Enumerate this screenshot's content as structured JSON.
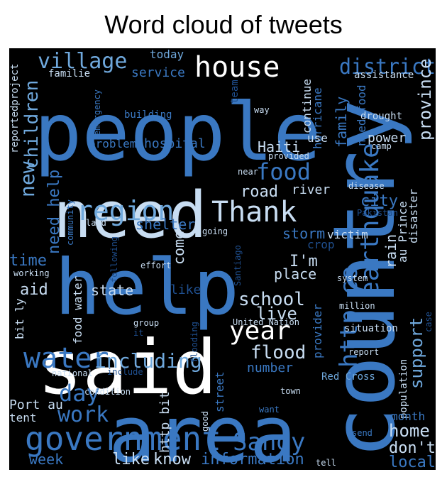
{
  "title": "Word cloud of tweets",
  "palette": {
    "background": "#000000",
    "dark": "#1f4f8f",
    "mid": "#3a78c2",
    "light": "#6fa8dc",
    "pale": "#c8ddf2",
    "white": "#ffffff"
  },
  "chart_data": {
    "type": "wordcloud",
    "title": "Word cloud of tweets",
    "words": [
      {
        "text": "people",
        "shade": "mid"
      },
      {
        "text": "need",
        "shade": "pale"
      },
      {
        "text": "help",
        "shade": "mid"
      },
      {
        "text": "said",
        "shade": "white"
      },
      {
        "text": "area",
        "shade": "mid"
      },
      {
        "text": "country",
        "shade": "mid"
      },
      {
        "text": "government",
        "shade": "mid"
      },
      {
        "text": "water",
        "shade": "mid"
      },
      {
        "text": "house",
        "shade": "white"
      },
      {
        "text": "village",
        "shade": "light"
      },
      {
        "text": "food",
        "shade": "mid"
      },
      {
        "text": "region",
        "shade": "light"
      },
      {
        "text": "Thank",
        "shade": "pale"
      },
      {
        "text": "earthquake",
        "shade": "mid"
      },
      {
        "text": "http co",
        "shade": "mid"
      },
      {
        "text": "Sandy",
        "shade": "mid"
      },
      {
        "text": "year",
        "shade": "white"
      },
      {
        "text": "including",
        "shade": "light"
      },
      {
        "text": "work",
        "shade": "mid"
      },
      {
        "text": "day",
        "shade": "mid"
      },
      {
        "text": "school",
        "shade": "pale"
      },
      {
        "text": "district",
        "shade": "mid"
      },
      {
        "text": "province",
        "shade": "pale"
      },
      {
        "text": "children",
        "shade": "light"
      },
      {
        "text": "new",
        "shade": "light"
      },
      {
        "text": "flood",
        "shade": "pale"
      },
      {
        "text": "live",
        "shade": "pale"
      },
      {
        "text": "road",
        "shade": "pale"
      },
      {
        "text": "storm",
        "shade": "mid"
      },
      {
        "text": "city",
        "shade": "mid"
      },
      {
        "text": "support",
        "shade": "light"
      },
      {
        "text": "home",
        "shade": "pale"
      },
      {
        "text": "information",
        "shade": "mid"
      },
      {
        "text": "like",
        "shade": "pale"
      },
      {
        "text": "know",
        "shade": "pale"
      },
      {
        "text": "week",
        "shade": "mid"
      },
      {
        "text": "local",
        "shade": "mid"
      },
      {
        "text": "don't",
        "shade": "pale"
      },
      {
        "text": "time",
        "shade": "mid"
      },
      {
        "text": "aid",
        "shade": "pale"
      },
      {
        "text": "state",
        "shade": "pale"
      },
      {
        "text": "like",
        "shade": "dark"
      },
      {
        "text": "I'm",
        "shade": "pale"
      },
      {
        "text": "place",
        "shade": "pale"
      },
      {
        "text": "rain",
        "shade": "pale"
      },
      {
        "text": "come",
        "shade": "pale"
      },
      {
        "text": "Haiti",
        "shade": "pale"
      },
      {
        "text": "river",
        "shade": "pale"
      },
      {
        "text": "shelter",
        "shade": "mid"
      },
      {
        "text": "hospital",
        "shade": "mid"
      },
      {
        "text": "problem",
        "shade": "mid"
      },
      {
        "text": "service",
        "shade": "mid"
      },
      {
        "text": "today",
        "shade": "light"
      },
      {
        "text": "familie",
        "shade": "pale"
      },
      {
        "text": "assistance",
        "shade": "pale"
      },
      {
        "text": "hurricane",
        "shade": "mid"
      },
      {
        "text": "continue",
        "shade": "pale"
      },
      {
        "text": "family",
        "shade": "mid"
      },
      {
        "text": "need food",
        "shade": "mid"
      },
      {
        "text": "drought",
        "shade": "pale"
      },
      {
        "text": "power",
        "shade": "pale"
      },
      {
        "text": "camp",
        "shade": "pale"
      },
      {
        "text": "use",
        "shade": "pale"
      },
      {
        "text": "provided",
        "shade": "pale"
      },
      {
        "text": "disease",
        "shade": "pale"
      },
      {
        "text": "Pakistan",
        "shade": "dark"
      },
      {
        "text": "disaster",
        "shade": "pale"
      },
      {
        "text": "au Prince",
        "shade": "pale"
      },
      {
        "text": "victim",
        "shade": "pale"
      },
      {
        "text": "crop",
        "shade": "dark"
      },
      {
        "text": "system",
        "shade": "pale"
      },
      {
        "text": "million",
        "shade": "pale"
      },
      {
        "text": "situation",
        "shade": "pale"
      },
      {
        "text": "case",
        "shade": "dark"
      },
      {
        "text": "report",
        "shade": "pale"
      },
      {
        "text": "Red Cross",
        "shade": "light"
      },
      {
        "text": "population",
        "shade": "pale"
      },
      {
        "text": "month",
        "shade": "mid"
      },
      {
        "text": "send",
        "shade": "mid"
      },
      {
        "text": "tell",
        "shade": "pale"
      },
      {
        "text": "town",
        "shade": "pale"
      },
      {
        "text": "want",
        "shade": "mid"
      },
      {
        "text": "number",
        "shade": "mid"
      },
      {
        "text": "provider",
        "shade": "mid"
      },
      {
        "text": "United Nation",
        "shade": "pale"
      },
      {
        "text": "Santiago",
        "shade": "dark"
      },
      {
        "text": "flooding",
        "shade": "dark"
      },
      {
        "text": "street",
        "shade": "mid"
      },
      {
        "text": "good",
        "shade": "pale"
      },
      {
        "text": "http bit",
        "shade": "pale"
      },
      {
        "text": "condition",
        "shade": "pale"
      },
      {
        "text": "national",
        "shade": "pale"
      },
      {
        "text": "include",
        "shade": "dark"
      },
      {
        "text": "Port au",
        "shade": "pale"
      },
      {
        "text": "tent",
        "shade": "pale"
      },
      {
        "text": "food water",
        "shade": "pale"
      },
      {
        "text": "bit ly",
        "shade": "pale"
      },
      {
        "text": "working",
        "shade": "pale"
      },
      {
        "text": "group",
        "shade": "pale"
      },
      {
        "text": "it",
        "shade": "dark"
      },
      {
        "text": "effort",
        "shade": "pale"
      },
      {
        "text": "following",
        "shade": "dark"
      },
      {
        "text": "going",
        "shade": "pale"
      },
      {
        "text": "land",
        "shade": "pale"
      },
      {
        "text": "community",
        "shade": "mid"
      },
      {
        "text": "need help",
        "shade": "mid"
      },
      {
        "text": "near",
        "shade": "pale"
      },
      {
        "text": "way",
        "shade": "pale"
      },
      {
        "text": "building",
        "shade": "mid"
      },
      {
        "text": "emergency",
        "shade": "mid"
      },
      {
        "text": "team",
        "shade": "dark"
      },
      {
        "text": "reportedproject",
        "shade": "pale"
      }
    ]
  }
}
